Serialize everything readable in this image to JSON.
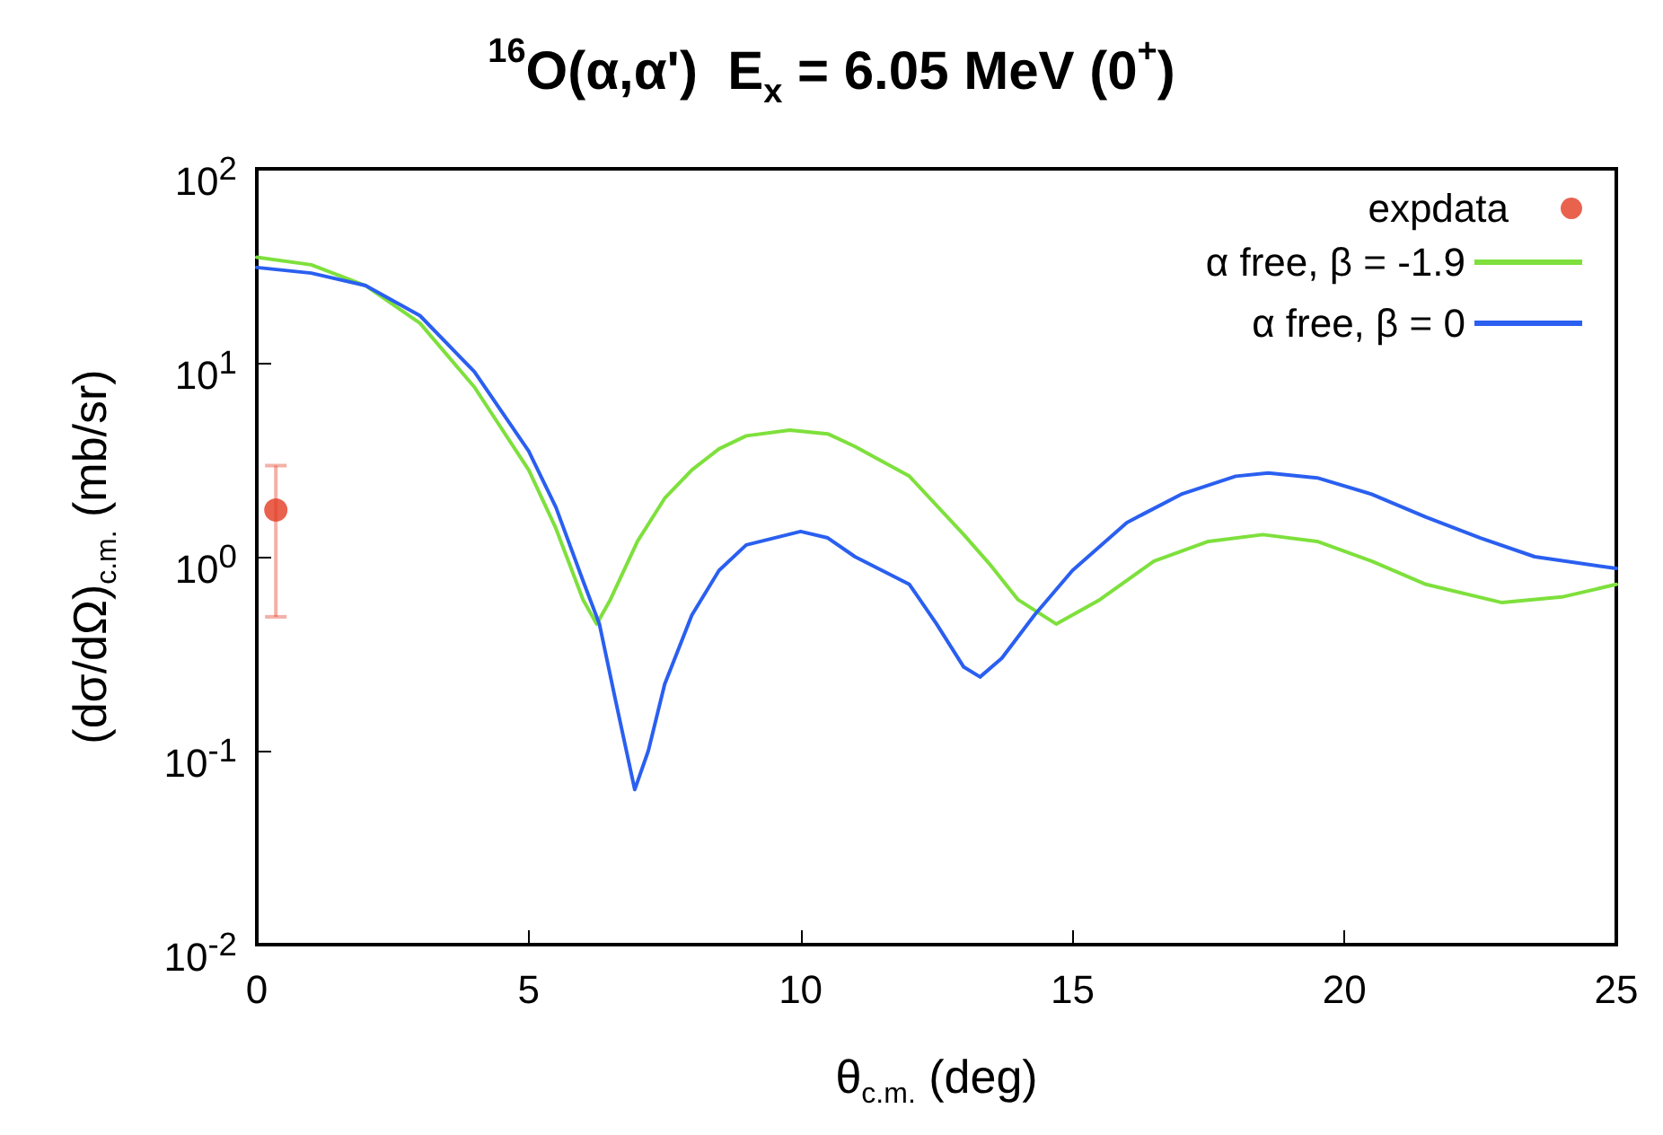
{
  "chart_data": {
    "type": "line",
    "title": "$^{16}$O(α,α')  E$_{x}$ = 6.05 MeV (0$^{+}$)",
    "xlabel": "θ$_{c.m.}$ (deg)",
    "ylabel": "(dσ/dΩ)$_{c.m.}$ (mb/sr)",
    "xlim": [
      0,
      25
    ],
    "xticks": [
      0,
      5,
      10,
      15,
      20,
      25
    ],
    "ylim": [
      0.01,
      100
    ],
    "yticks": [
      {
        "value": 0.01,
        "label": "10$^{-2}$"
      },
      {
        "value": 0.1,
        "label": "10$^{-1}$"
      },
      {
        "value": 1,
        "label": "10$^{0}$"
      },
      {
        "value": 10,
        "label": "10$^{1}$"
      },
      {
        "value": 100,
        "label": "10$^{2}$"
      }
    ],
    "log": "y",
    "grid": false,
    "legend": "top right",
    "marker": "none",
    "series": [
      {
        "name": "expdata",
        "type": "scatter",
        "marker": "circle",
        "color": "#e23b22",
        "x": [
          0.35
        ],
        "values": [
          1.74
        ],
        "errors": [
          [
            0.49,
            2.95
          ]
        ]
      },
      {
        "name": "α free, β = -1.9",
        "color": "#7ee03c",
        "x": [
          0,
          1,
          2,
          3,
          4,
          5,
          5.5,
          6,
          6.25,
          6.5,
          7,
          7.5,
          8,
          8.5,
          9,
          9.8,
          10.5,
          11,
          12,
          13,
          13.5,
          14,
          14.7,
          15.5,
          16.5,
          17.5,
          18.5,
          19.5,
          20.5,
          21.5,
          22.9,
          24,
          25
        ],
        "values": [
          35,
          32,
          25,
          16,
          7.5,
          2.8,
          1.4,
          0.6,
          0.45,
          0.6,
          1.2,
          2.0,
          2.8,
          3.6,
          4.2,
          4.5,
          4.3,
          3.7,
          2.6,
          1.3,
          0.9,
          0.6,
          0.45,
          0.6,
          0.95,
          1.2,
          1.3,
          1.2,
          0.95,
          0.72,
          0.58,
          0.62,
          0.72
        ]
      },
      {
        "name": "α free, β = 0",
        "color": "#2a5ff0",
        "x": [
          0,
          1,
          2,
          3,
          4,
          5,
          5.5,
          6,
          6.3,
          6.6,
          6.95,
          7.2,
          7.5,
          8,
          8.5,
          9,
          10,
          10.5,
          11,
          12,
          12.5,
          13,
          13.3,
          13.7,
          14.3,
          15,
          16,
          17,
          18,
          18.6,
          19.5,
          20.5,
          21.5,
          22.5,
          23.5,
          25
        ],
        "values": [
          31,
          29,
          25,
          17.5,
          9,
          3.5,
          1.8,
          0.75,
          0.45,
          0.18,
          0.063,
          0.1,
          0.22,
          0.5,
          0.85,
          1.15,
          1.35,
          1.25,
          1.0,
          0.72,
          0.45,
          0.27,
          0.24,
          0.3,
          0.5,
          0.85,
          1.5,
          2.1,
          2.6,
          2.7,
          2.55,
          2.1,
          1.6,
          1.25,
          1.0,
          0.87
        ]
      }
    ]
  }
}
